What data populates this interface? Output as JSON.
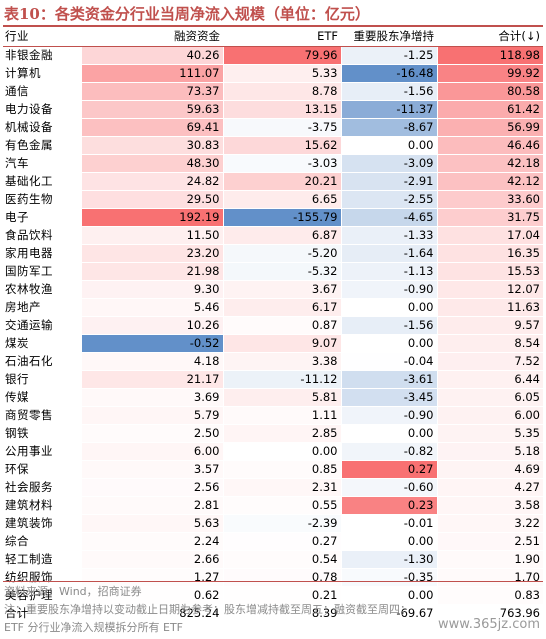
{
  "title": "表10：各类资金分行业当周净流入规模（单位：亿元）",
  "headers": [
    "行业",
    "融资资金",
    "ETF",
    "重要股东净增持",
    "合计(↓)"
  ],
  "rows": [
    {
      "name": "非银金融",
      "values": [
        "40.26",
        "79.96",
        "-1.25",
        "118.98"
      ]
    },
    {
      "name": "计算机",
      "values": [
        "111.07",
        "5.33",
        "-16.48",
        "99.92"
      ]
    },
    {
      "name": "通信",
      "values": [
        "73.37",
        "8.78",
        "-1.56",
        "80.58"
      ]
    },
    {
      "name": "电力设备",
      "values": [
        "59.63",
        "13.15",
        "-11.37",
        "61.42"
      ]
    },
    {
      "name": "机械设备",
      "values": [
        "69.41",
        "-3.75",
        "-8.67",
        "56.99"
      ]
    },
    {
      "name": "有色金属",
      "values": [
        "30.83",
        "15.62",
        "0.00",
        "46.46"
      ]
    },
    {
      "name": "汽车",
      "values": [
        "48.30",
        "-3.03",
        "-3.09",
        "42.18"
      ]
    },
    {
      "name": "基础化工",
      "values": [
        "24.82",
        "20.21",
        "-2.91",
        "42.12"
      ]
    },
    {
      "name": "医药生物",
      "values": [
        "29.50",
        "6.65",
        "-2.55",
        "33.60"
      ]
    },
    {
      "name": "电子",
      "values": [
        "192.19",
        "-155.79",
        "-4.65",
        "31.75"
      ]
    },
    {
      "name": "食品饮料",
      "values": [
        "11.50",
        "6.87",
        "-1.33",
        "17.04"
      ]
    },
    {
      "name": "家用电器",
      "values": [
        "23.20",
        "-5.20",
        "-1.64",
        "16.35"
      ]
    },
    {
      "name": "国防军工",
      "values": [
        "21.98",
        "-5.32",
        "-1.13",
        "15.53"
      ]
    },
    {
      "name": "农林牧渔",
      "values": [
        "9.30",
        "3.67",
        "-0.90",
        "12.07"
      ]
    },
    {
      "name": "房地产",
      "values": [
        "5.46",
        "6.17",
        "0.00",
        "11.63"
      ]
    },
    {
      "name": "交通运输",
      "values": [
        "10.26",
        "0.87",
        "-1.56",
        "9.57"
      ]
    },
    {
      "name": "煤炭",
      "values": [
        "-0.52",
        "9.07",
        "0.00",
        "8.54"
      ]
    },
    {
      "name": "石油石化",
      "values": [
        "4.18",
        "3.38",
        "-0.04",
        "7.52"
      ]
    },
    {
      "name": "银行",
      "values": [
        "21.17",
        "-11.12",
        "-3.61",
        "6.44"
      ]
    },
    {
      "name": "传媒",
      "values": [
        "3.69",
        "5.81",
        "-3.45",
        "6.05"
      ]
    },
    {
      "name": "商贸零售",
      "values": [
        "5.79",
        "1.11",
        "-0.90",
        "6.00"
      ]
    },
    {
      "name": "钢铁",
      "values": [
        "2.50",
        "2.85",
        "0.00",
        "5.35"
      ]
    },
    {
      "name": "公用事业",
      "values": [
        "6.00",
        "0.00",
        "-0.82",
        "5.18"
      ]
    },
    {
      "name": "环保",
      "values": [
        "3.57",
        "0.85",
        "0.27",
        "4.69"
      ]
    },
    {
      "name": "社会服务",
      "values": [
        "2.56",
        "2.31",
        "-0.60",
        "4.27"
      ]
    },
    {
      "name": "建筑材料",
      "values": [
        "2.81",
        "0.55",
        "0.23",
        "3.58"
      ]
    },
    {
      "name": "建筑装饰",
      "values": [
        "5.63",
        "-2.39",
        "-0.01",
        "3.22"
      ]
    },
    {
      "name": "综合",
      "values": [
        "2.24",
        "0.27",
        "0.00",
        "2.51"
      ]
    },
    {
      "name": "轻工制造",
      "values": [
        "2.66",
        "0.54",
        "-1.30",
        "1.90"
      ]
    },
    {
      "name": "纺织服饰",
      "values": [
        "1.27",
        "0.78",
        "-0.35",
        "1.70"
      ]
    },
    {
      "name": "美容护理",
      "values": [
        "0.62",
        "0.21",
        "0.00",
        "0.83"
      ]
    }
  ],
  "total": {
    "name": "合计",
    "values": [
      "825.24",
      "8.39",
      "-69.67",
      "763.96"
    ]
  },
  "notes": {
    "source": "资料来源：Wind，招商证券",
    "note1": "注：重要股东净增持以变动截止日期为参考；股东增减持截至周五；融资截至周四；",
    "note2": "ETF 分行业净流入规模拆分所有 ETF"
  },
  "watermark": "www.365jz.com",
  "colors": {
    "positive": "#f8696b",
    "negative": "#5a8ac6",
    "accent": "#c0504d"
  }
}
